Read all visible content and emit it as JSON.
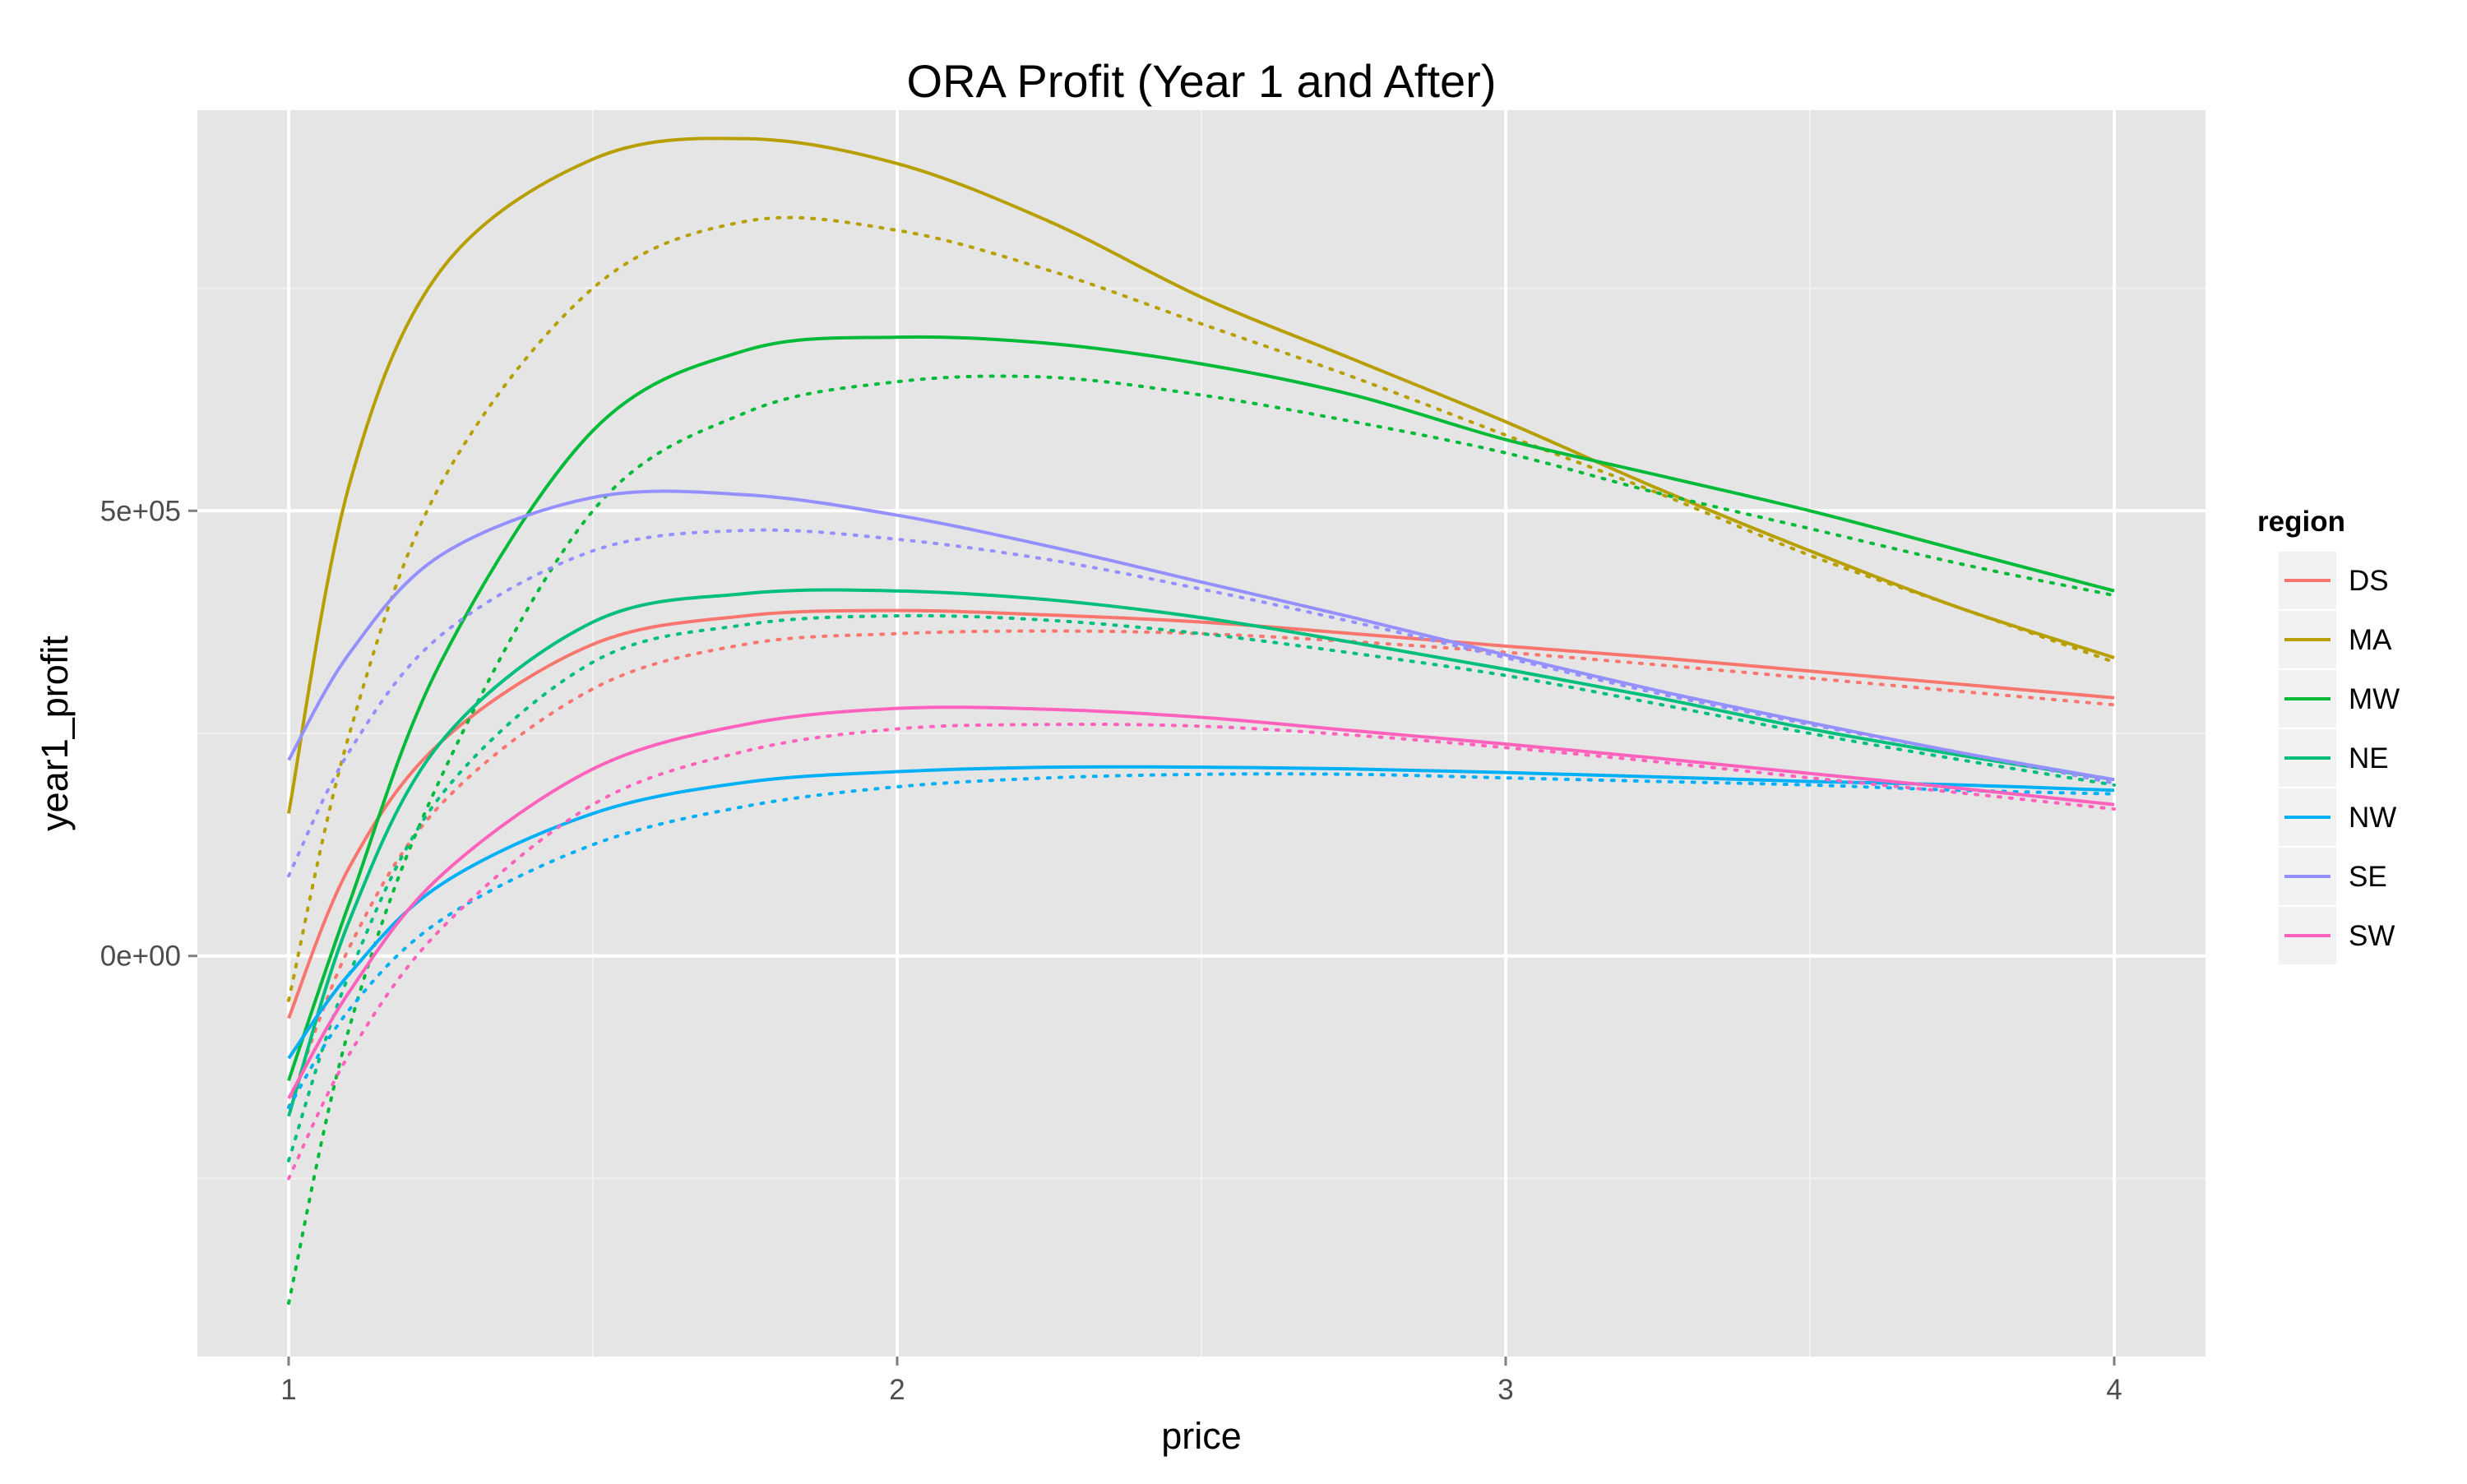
{
  "chart_data": {
    "type": "line",
    "title": "ORA Profit (Year 1 and After)",
    "xlabel": "price",
    "ylabel": "year1_profit",
    "xlim": [
      0.85,
      4.15
    ],
    "ylim": [
      -450000,
      950000
    ],
    "x_ticks": [
      {
        "value": 1,
        "label": "1"
      },
      {
        "value": 2,
        "label": "2"
      },
      {
        "value": 3,
        "label": "3"
      },
      {
        "value": 4,
        "label": "4"
      }
    ],
    "y_ticks": [
      {
        "value": 0,
        "label": "0e+00"
      },
      {
        "value": 500000,
        "label": "5e+05"
      }
    ],
    "x_minor": [
      1.5,
      2.5,
      3.5
    ],
    "y_minor": [
      -250000,
      250000,
      750000
    ],
    "grid": true,
    "legend": {
      "title": "region",
      "position": "right"
    },
    "line_styles": {
      "solid": "year1",
      "dotted": "after"
    },
    "x": [
      1.0,
      1.1,
      1.25,
      1.5,
      1.75,
      2.0,
      2.25,
      2.5,
      2.75,
      3.0,
      3.25,
      3.5,
      3.75,
      4.0
    ],
    "series": [
      {
        "name": "DS",
        "color": "#F8766D",
        "year1": [
          -70000,
          100000,
          240000,
          350000,
          382000,
          388000,
          383000,
          375000,
          362000,
          348000,
          335000,
          320000,
          305000,
          290000
        ],
        "after": [
          -170000,
          10000,
          170000,
          300000,
          350000,
          362000,
          365000,
          362000,
          353000,
          341000,
          327000,
          312000,
          297000,
          282000
        ]
      },
      {
        "name": "MA",
        "color": "#B79F00",
        "year1": [
          160000,
          530000,
          770000,
          895000,
          918000,
          890000,
          825000,
          740000,
          670000,
          600000,
          525000,
          455000,
          390000,
          335000
        ],
        "after": [
          -50000,
          250000,
          530000,
          750000,
          825000,
          815000,
          770000,
          710000,
          650000,
          585000,
          520000,
          450000,
          390000,
          330000
        ]
      },
      {
        "name": "MW",
        "color": "#00BA38",
        "year1": [
          -140000,
          60000,
          330000,
          590000,
          680000,
          695000,
          688000,
          665000,
          630000,
          580000,
          540000,
          500000,
          455000,
          410000
        ],
        "after": [
          -390000,
          -80000,
          200000,
          500000,
          610000,
          645000,
          650000,
          630000,
          600000,
          565000,
          520000,
          480000,
          440000,
          405000
        ]
      },
      {
        "name": "NE",
        "color": "#00BF7D",
        "year1": [
          -180000,
          40000,
          240000,
          375000,
          407000,
          410000,
          400000,
          380000,
          352000,
          322000,
          290000,
          255000,
          225000,
          198000
        ],
        "after": [
          -230000,
          -20000,
          180000,
          330000,
          372000,
          382000,
          377000,
          362000,
          340000,
          315000,
          283000,
          250000,
          220000,
          192000
        ]
      },
      {
        "name": "NW",
        "color": "#00B0F6",
        "year1": [
          -115000,
          -20000,
          80000,
          160000,
          195000,
          207000,
          212000,
          212000,
          210000,
          206000,
          201000,
          196000,
          192000,
          186000
        ],
        "after": [
          -170000,
          -60000,
          40000,
          125000,
          168000,
          190000,
          200000,
          204000,
          204000,
          200000,
          196000,
          192000,
          186000,
          182000
        ]
      },
      {
        "name": "SE",
        "color": "#9590FF",
        "year1": [
          220000,
          340000,
          450000,
          515000,
          518000,
          495000,
          460000,
          420000,
          380000,
          338000,
          298000,
          262000,
          228000,
          198000
        ],
        "after": [
          90000,
          230000,
          360000,
          455000,
          478000,
          468000,
          445000,
          412000,
          375000,
          335000,
          295000,
          260000,
          228000,
          194000
        ]
      },
      {
        "name": "SW",
        "color": "#FF62BC",
        "year1": [
          -160000,
          -40000,
          90000,
          210000,
          260000,
          278000,
          277000,
          268000,
          253000,
          238000,
          222000,
          205000,
          188000,
          170000
        ],
        "after": [
          -250000,
          -110000,
          30000,
          170000,
          230000,
          255000,
          260000,
          258000,
          248000,
          234000,
          218000,
          200000,
          183000,
          165000
        ]
      }
    ]
  }
}
